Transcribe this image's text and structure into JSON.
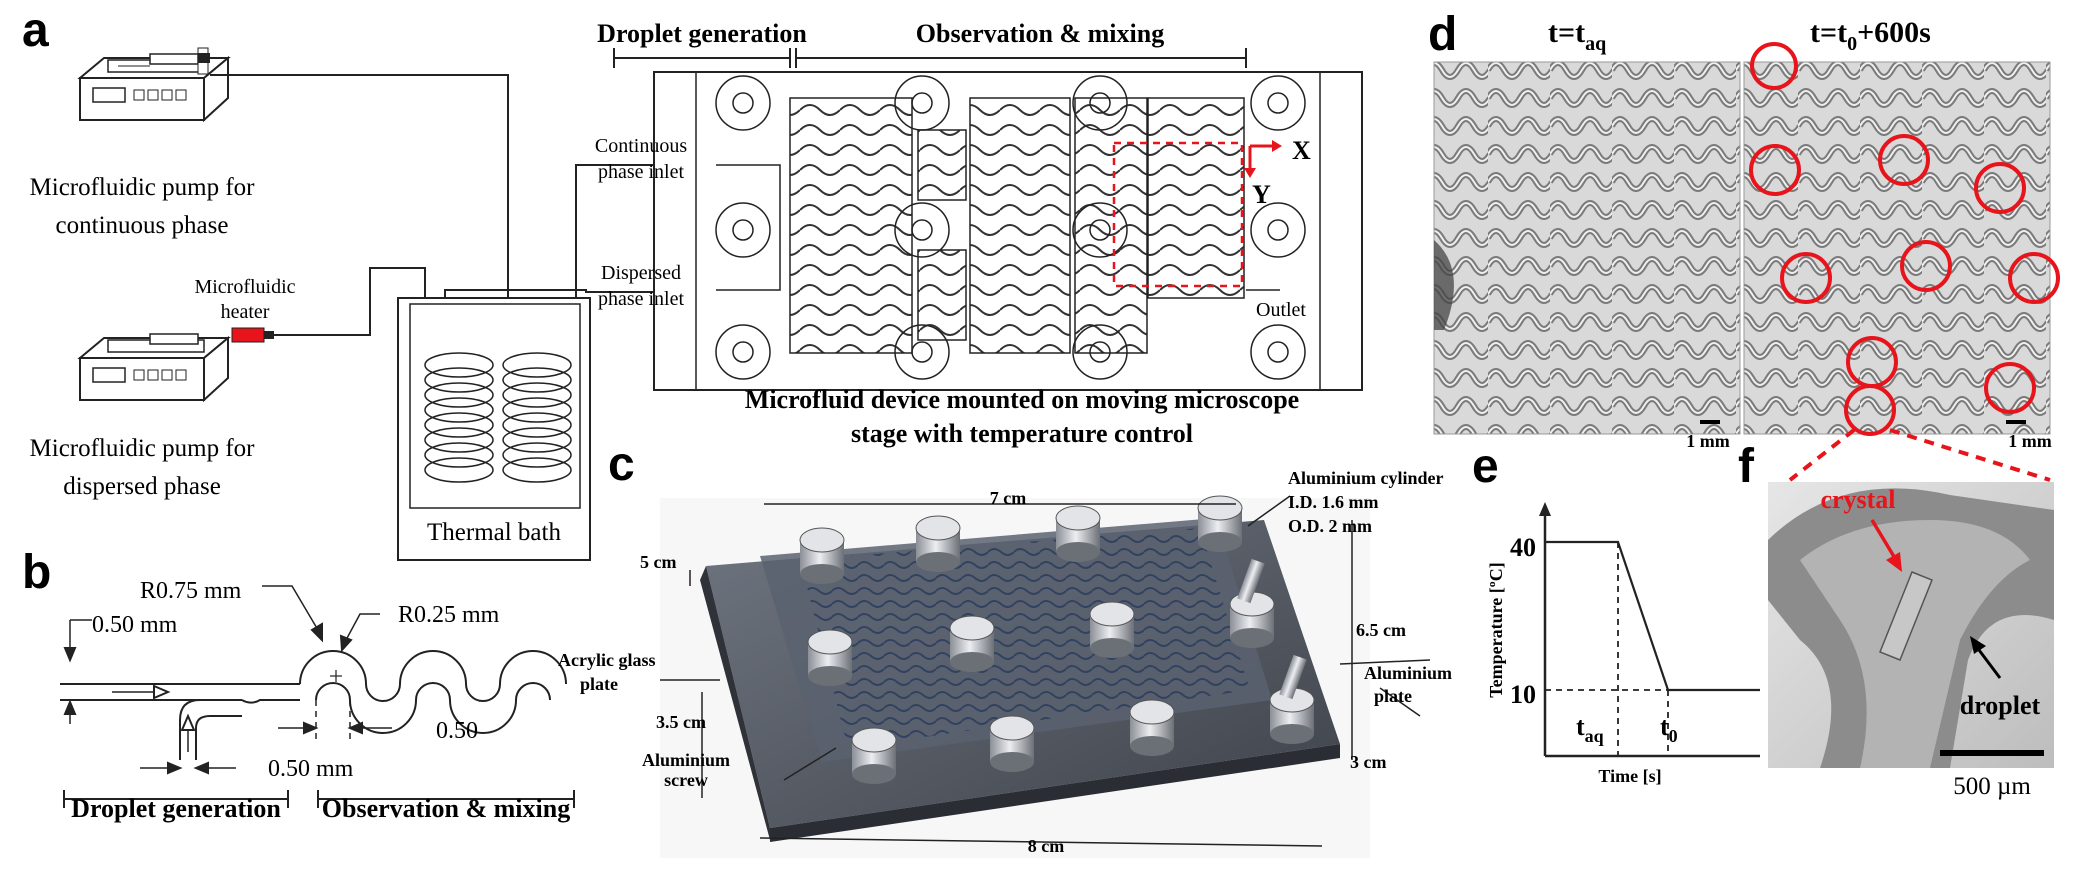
{
  "panels": {
    "a": "a",
    "b": "b",
    "c": "c",
    "d": "d",
    "e": "e",
    "f": "f"
  },
  "panel_a": {
    "pump_continuous": [
      "Microfluidic pump for",
      "continuous phase"
    ],
    "pump_dispersed": [
      "Microfluidic pump for",
      "dispersed phase"
    ],
    "heater": [
      "Microfluidic",
      "heater"
    ],
    "bath": "Thermal bath",
    "droplet_generation": "Droplet generation",
    "observation_mixing": "Observation & mixing",
    "continuous_inlet": [
      "Continuous",
      "phase inlet"
    ],
    "dispersed_inlet": [
      "Dispersed",
      "phase inlet"
    ],
    "outlet": "Outlet",
    "axis_x": "X",
    "axis_y": "Y",
    "device_caption": [
      "Microfluid device mounted on moving microscope",
      "stage with temperature control"
    ]
  },
  "panel_b": {
    "r075": "R0.75 mm",
    "r025": "R0.25 mm",
    "w050_left": "0.50 mm",
    "w050_right": "0.50",
    "w050_bottom": "0.50 mm",
    "droplet_generation": "Droplet generation",
    "observation_mixing": "Observation & mixing"
  },
  "panel_c": {
    "w7": "7 cm",
    "w5": "5 cm",
    "w35": "3.5 cm",
    "w8": "8 cm",
    "w65": "6.5 cm",
    "w3": "3 cm",
    "acrylic": [
      "Acrylic glass",
      "plate"
    ],
    "alu_plate": [
      "Aluminium",
      "plate"
    ],
    "alu_screw": [
      "Aluminium",
      "screw"
    ],
    "alu_cyl": [
      "Aluminium cylinder",
      "I.D. 1.6 mm",
      "O.D. 2 mm"
    ]
  },
  "panel_d": {
    "left_title_main": "t=t",
    "left_title_sub": "aq",
    "right_title_main": "t=t",
    "right_title_sub": "0",
    "right_title_tail": "+600s",
    "scale_left": "1 mm",
    "scale_right": "1 mm"
  },
  "panel_e": {
    "ylabel": "Temperature [ºC]",
    "xlabel": "Time [s]",
    "tick_40": "40",
    "tick_10": "10",
    "taq_main": "t",
    "taq_sub": "aq",
    "t0_main": "t",
    "t0_sub": "0"
  },
  "panel_f": {
    "crystal": "crystal",
    "droplet": "droplet",
    "scale": "500 µm"
  },
  "colors": {
    "red": "#e8141b",
    "steel": "#4a4e57",
    "metal": "#c9ccd3"
  }
}
